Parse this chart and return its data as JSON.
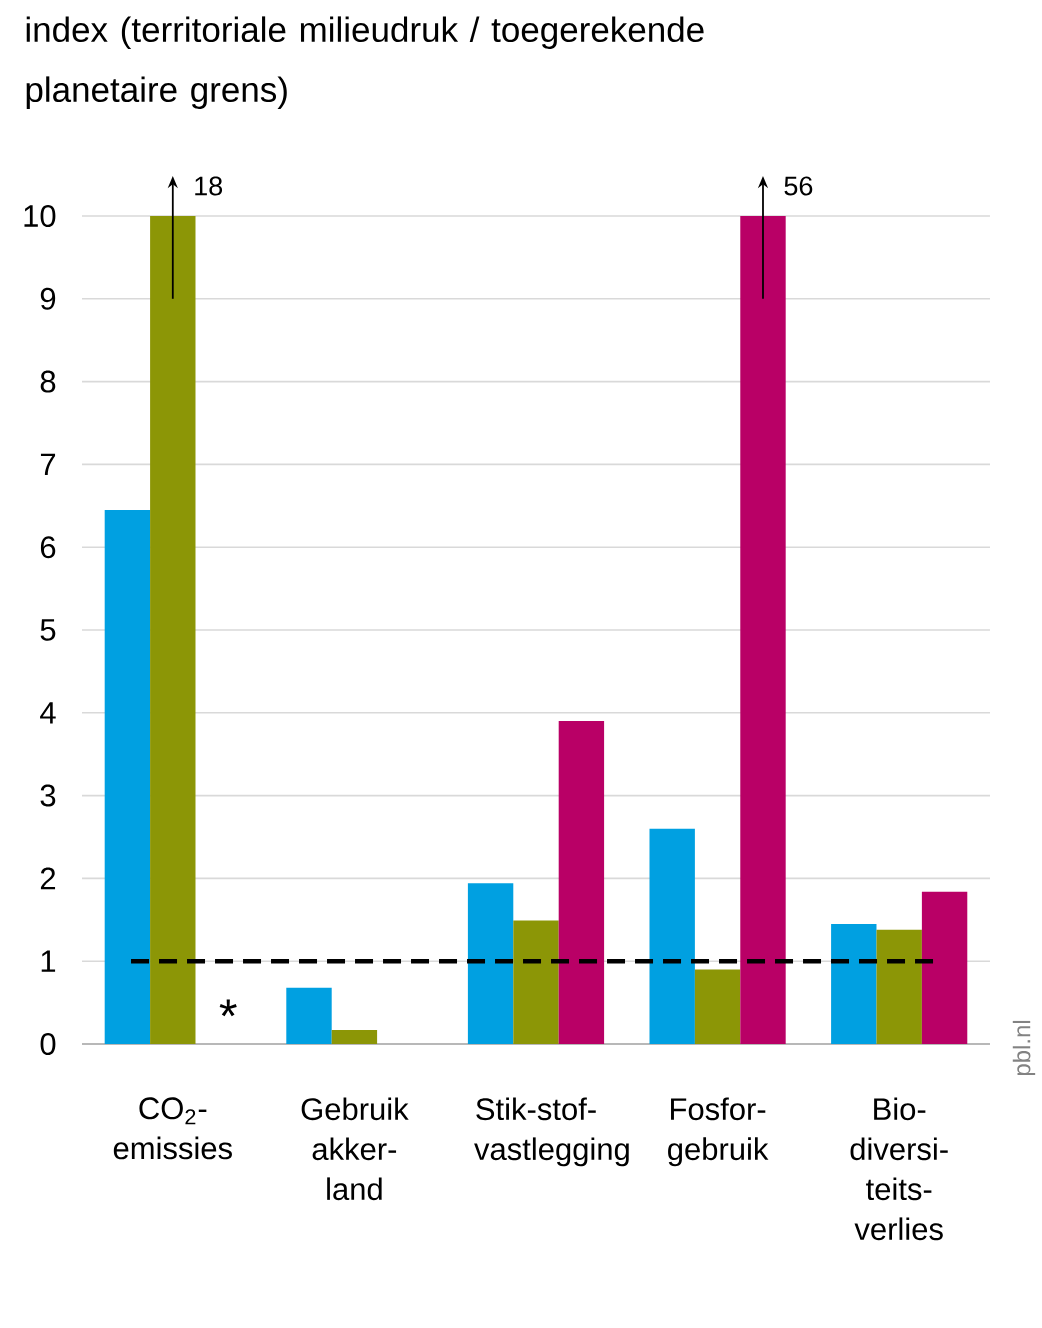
{
  "chart_data": {
    "type": "bar",
    "ylabel": "index (territoriale milieudruk / toegerekende planetaire grens)",
    "categories": [
      "CO$_{2}$-emissies",
      "Gebruik akker-land",
      "Stik-stof-vastlegging",
      "Fosfor-gebruik",
      "Bio-diversi-teits-verlies"
    ],
    "series": [
      {
        "color": "#00a0e1",
        "values": [
          6.45,
          0.68,
          1.94,
          2.6,
          1.45
        ]
      },
      {
        "color": "#8c9606",
        "values": [
          10,
          0.17,
          1.49,
          0.9,
          1.38
        ]
      },
      {
        "color": "#b90066",
        "values": [
          null,
          null,
          3.9,
          10,
          1.84
        ]
      }
    ],
    "ylim": [
      0,
      10
    ],
    "yticks": [
      0,
      1,
      2,
      3,
      4,
      5,
      6,
      7,
      8,
      9,
      10
    ],
    "grid": "y",
    "ref_lines": [
      {
        "axis": "y",
        "value": 1,
        "color": "#000000",
        "line_style": "dashed"
      }
    ],
    "annotations": [
      "18",
      "56",
      "*",
      "pbl.nl"
    ]
  }
}
